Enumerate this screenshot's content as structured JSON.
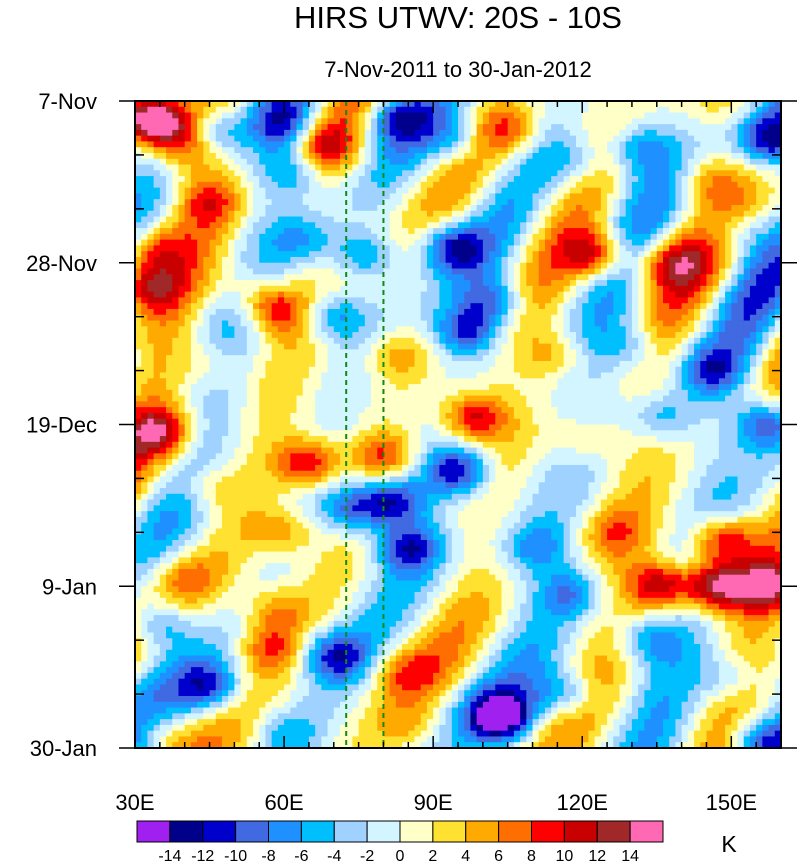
{
  "chart_data": {
    "type": "heatmap",
    "title": "HIRS UTWV: 20S - 10S",
    "subtitle": "7-Nov-2011 to 30-Jan-2012",
    "x_axis": {
      "range": [
        30,
        160
      ],
      "ticks": [
        30,
        60,
        90,
        120,
        150
      ],
      "tick_labels": [
        "30E",
        "60E",
        "90E",
        "120E",
        "150E"
      ]
    },
    "y_axis": {
      "range_days": [
        0,
        84
      ],
      "ticks_days": [
        0,
        21,
        42,
        63,
        84
      ],
      "tick_labels": [
        "7-Nov",
        "28-Nov",
        "19-Dec",
        "9-Jan",
        "30-Jan"
      ],
      "inverted": true
    },
    "reference_lines_lon": [
      72.5,
      80
    ],
    "colorbar": {
      "unit": "K",
      "levels": [
        -14,
        -12,
        -10,
        -8,
        -6,
        -4,
        -2,
        0,
        2,
        4,
        6,
        8,
        10,
        12,
        14
      ],
      "labels": [
        "-14",
        "-12",
        "-10",
        "-8",
        "-6",
        "-4",
        "-2",
        "0",
        "2",
        "4",
        "6",
        "8",
        "10",
        "12",
        "14"
      ],
      "colors": [
        "#a020f0",
        "#00008b",
        "#0000cd",
        "#4169e1",
        "#1e90ff",
        "#00bfff",
        "#a0d2ff",
        "#d2f5ff",
        "#ffffc8",
        "#ffe132",
        "#ffaa00",
        "#ff6e00",
        "#ff0000",
        "#c80000",
        "#a02828",
        "#ff69b4"
      ]
    },
    "features": [
      {
        "lon": 32,
        "day": 2,
        "value": 13
      },
      {
        "lon": 36,
        "day": 3,
        "value": 10
      },
      {
        "lon": 40,
        "day": 6,
        "value": 6
      },
      {
        "lon": 46,
        "day": 4,
        "value": -7
      },
      {
        "lon": 60,
        "day": 3,
        "value": -8
      },
      {
        "lon": 62,
        "day": 9,
        "value": -6
      },
      {
        "lon": 68,
        "day": 6,
        "value": 8
      },
      {
        "lon": 82,
        "day": 2,
        "value": -9
      },
      {
        "lon": 95,
        "day": 5,
        "value": -6
      },
      {
        "lon": 105,
        "day": 4,
        "value": 6
      },
      {
        "lon": 118,
        "day": 8,
        "value": -5
      },
      {
        "lon": 131,
        "day": 6,
        "value": -7
      },
      {
        "lon": 145,
        "day": 10,
        "value": 5
      },
      {
        "lon": 158,
        "day": 5,
        "value": -10
      },
      {
        "lon": 33,
        "day": 19,
        "value": 8
      },
      {
        "lon": 45,
        "day": 13,
        "value": 6
      },
      {
        "lon": 52,
        "day": 24,
        "value": 4
      },
      {
        "lon": 64,
        "day": 18,
        "value": -5
      },
      {
        "lon": 76,
        "day": 20,
        "value": -7
      },
      {
        "lon": 94,
        "day": 19,
        "value": -11
      },
      {
        "lon": 102,
        "day": 26,
        "value": -8
      },
      {
        "lon": 123,
        "day": 20,
        "value": 11
      },
      {
        "lon": 137,
        "day": 21,
        "value": 8
      },
      {
        "lon": 150,
        "day": 17,
        "value": -6
      },
      {
        "lon": 32,
        "day": 24,
        "value": 9
      },
      {
        "lon": 58,
        "day": 27,
        "value": 10
      },
      {
        "lon": 70,
        "day": 28,
        "value": -8
      },
      {
        "lon": 83,
        "day": 33,
        "value": 5
      },
      {
        "lon": 97,
        "day": 30,
        "value": -10
      },
      {
        "lon": 115,
        "day": 33,
        "value": 5
      },
      {
        "lon": 130,
        "day": 32,
        "value": -5
      },
      {
        "lon": 146,
        "day": 35,
        "value": -8
      },
      {
        "lon": 45,
        "day": 34,
        "value": 4
      },
      {
        "lon": 35,
        "day": 43,
        "value": 10
      },
      {
        "lon": 65,
        "day": 47,
        "value": 11
      },
      {
        "lon": 80,
        "day": 46,
        "value": 8
      },
      {
        "lon": 95,
        "day": 48,
        "value": -12
      },
      {
        "lon": 98,
        "day": 41,
        "value": 11
      },
      {
        "lon": 82,
        "day": 52,
        "value": -11
      },
      {
        "lon": 120,
        "day": 44,
        "value": 4
      },
      {
        "lon": 136,
        "day": 41,
        "value": -6
      },
      {
        "lon": 157,
        "day": 42,
        "value": -10
      },
      {
        "lon": 45,
        "day": 50,
        "value": 5
      },
      {
        "lon": 60,
        "day": 56,
        "value": 6
      },
      {
        "lon": 74,
        "day": 53,
        "value": -9
      },
      {
        "lon": 85,
        "day": 58,
        "value": -10
      },
      {
        "lon": 110,
        "day": 58,
        "value": -6
      },
      {
        "lon": 126,
        "day": 56,
        "value": 5
      },
      {
        "lon": 148,
        "day": 57,
        "value": 12
      },
      {
        "lon": 136,
        "day": 63,
        "value": 12
      },
      {
        "lon": 147,
        "day": 63,
        "value": 15
      },
      {
        "lon": 158,
        "day": 63,
        "value": 11
      },
      {
        "lon": 40,
        "day": 62,
        "value": 5
      },
      {
        "lon": 58,
        "day": 66,
        "value": 6
      },
      {
        "lon": 118,
        "day": 64,
        "value": -7
      },
      {
        "lon": 35,
        "day": 68,
        "value": -7
      },
      {
        "lon": 45,
        "day": 76,
        "value": -9
      },
      {
        "lon": 70,
        "day": 72,
        "value": -10
      },
      {
        "lon": 57,
        "day": 71,
        "value": 7
      },
      {
        "lon": 84,
        "day": 74,
        "value": 5
      },
      {
        "lon": 104,
        "day": 80,
        "value": -15
      },
      {
        "lon": 117,
        "day": 77,
        "value": -8
      },
      {
        "lon": 133,
        "day": 70,
        "value": -6
      },
      {
        "lon": 150,
        "day": 75,
        "value": -5
      },
      {
        "lon": 156,
        "day": 83,
        "value": -9
      },
      {
        "lon": 35,
        "day": 82,
        "value": 4
      },
      {
        "lon": 60,
        "day": 82,
        "value": -4
      },
      {
        "lon": 86,
        "day": 82,
        "value": 3
      }
    ]
  }
}
